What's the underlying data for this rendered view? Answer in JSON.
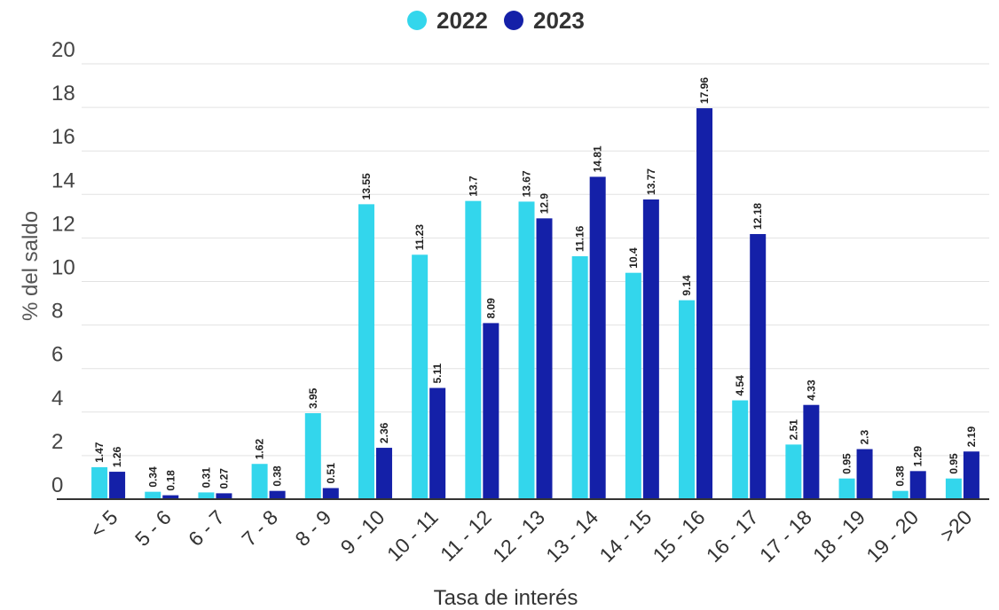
{
  "chart_data": {
    "type": "bar",
    "title": "",
    "xlabel": "Tasa de interés",
    "ylabel": "% del saldo",
    "ylim": [
      0,
      20
    ],
    "yticks": [
      0,
      2,
      4,
      6,
      8,
      10,
      12,
      14,
      16,
      18,
      20
    ],
    "grid": true,
    "legend_position": "top-center",
    "categories": [
      "< 5",
      "5 - 6",
      "6 - 7",
      "7 - 8",
      "8 - 9",
      "9 - 10",
      "10 - 11",
      "11 - 12",
      "12 - 13",
      "13 - 14",
      "14 - 15",
      "15 - 16",
      "16 - 17",
      "17 - 18",
      "18 - 19",
      "19 - 20",
      ">20"
    ],
    "series": [
      {
        "name": "2022",
        "color": "#33d6ec",
        "values": [
          1.47,
          0.34,
          0.31,
          1.62,
          3.95,
          13.55,
          11.23,
          13.7,
          13.67,
          11.16,
          10.4,
          9.14,
          4.54,
          2.51,
          0.95,
          0.38,
          0.95
        ]
      },
      {
        "name": "2023",
        "color": "#1420a8",
        "values": [
          1.26,
          0.18,
          0.27,
          0.38,
          0.51,
          2.36,
          5.11,
          8.09,
          12.9,
          14.81,
          13.77,
          17.96,
          12.18,
          4.33,
          2.3,
          1.29,
          2.19
        ]
      }
    ]
  }
}
